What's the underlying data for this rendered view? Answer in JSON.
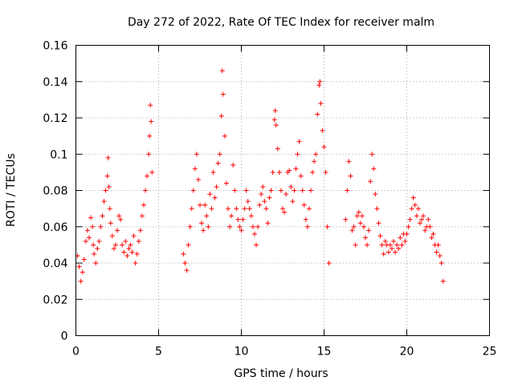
{
  "chart_data": {
    "type": "scatter",
    "title": "Day 272 of 2022, Rate Of TEC Index for receiver malm",
    "xlabel": "GPS time / hours",
    "ylabel": "ROTI / TECUs",
    "xlim": [
      0,
      25
    ],
    "ylim": [
      0,
      0.16
    ],
    "xticks": [
      0,
      5,
      10,
      15,
      20,
      25
    ],
    "xtick_labels": [
      "0",
      "5",
      "10",
      "15",
      "20",
      "25"
    ],
    "yticks": [
      0,
      0.02,
      0.04,
      0.06,
      0.08,
      0.1,
      0.12,
      0.14,
      0.16
    ],
    "ytick_labels": [
      "0",
      "0.02",
      "0.04",
      "0.06",
      "0.08",
      "0.1",
      "0.12",
      "0.14",
      "0.16"
    ],
    "grid": true,
    "marker": "+",
    "color": "#ff0000",
    "series": [
      {
        "x": [
          0.1,
          0.2,
          0.3,
          0.4,
          0.5,
          0.6,
          0.7,
          0.8,
          0.9,
          1.0,
          1.05,
          1.1,
          1.2,
          1.3,
          1.4,
          1.5,
          1.6,
          1.7,
          1.8,
          1.9,
          1.95,
          2.0,
          2.05,
          2.1,
          2.2,
          2.3,
          2.4,
          2.5,
          2.6,
          2.7,
          2.8,
          2.9,
          3.0,
          3.1,
          3.2,
          3.3,
          3.4,
          3.5,
          3.6,
          3.7,
          3.8,
          3.9,
          4.0,
          4.1,
          4.2,
          4.3,
          4.4,
          4.45,
          4.5,
          4.55,
          4.6,
          6.5,
          6.6,
          6.7,
          6.8,
          6.9,
          7.0,
          7.1,
          7.2,
          7.3,
          7.4,
          7.5,
          7.6,
          7.7,
          7.8,
          7.9,
          8.0,
          8.1,
          8.2,
          8.3,
          8.4,
          8.5,
          8.6,
          8.7,
          8.8,
          8.85,
          8.9,
          9.0,
          9.1,
          9.2,
          9.3,
          9.4,
          9.5,
          9.6,
          9.7,
          9.8,
          9.9,
          10.0,
          10.1,
          10.2,
          10.3,
          10.4,
          10.5,
          10.6,
          10.7,
          10.8,
          10.9,
          11.0,
          11.1,
          11.2,
          11.3,
          11.4,
          11.5,
          11.6,
          11.7,
          11.8,
          11.9,
          12.0,
          12.05,
          12.1,
          12.2,
          12.3,
          12.4,
          12.5,
          12.6,
          12.7,
          12.8,
          12.9,
          13.0,
          13.1,
          13.2,
          13.3,
          13.4,
          13.5,
          13.6,
          13.7,
          13.8,
          13.9,
          14.0,
          14.1,
          14.2,
          14.3,
          14.4,
          14.5,
          14.6,
          14.7,
          14.75,
          14.8,
          14.9,
          15.0,
          15.1,
          15.2,
          15.3,
          16.3,
          16.4,
          16.5,
          16.6,
          16.7,
          16.8,
          16.9,
          17.0,
          17.1,
          17.2,
          17.3,
          17.4,
          17.5,
          17.6,
          17.7,
          17.8,
          17.9,
          18.0,
          18.1,
          18.2,
          18.3,
          18.4,
          18.5,
          18.6,
          18.7,
          18.8,
          18.9,
          19.0,
          19.1,
          19.2,
          19.3,
          19.4,
          19.5,
          19.6,
          19.7,
          19.8,
          19.9,
          20.0,
          20.1,
          20.2,
          20.3,
          20.4,
          20.5,
          20.6,
          20.7,
          20.8,
          20.9,
          21.0,
          21.1,
          21.2,
          21.3,
          21.4,
          21.5,
          21.6,
          21.7,
          21.8,
          21.9,
          22.0,
          22.1,
          22.2
        ],
        "y": [
          0.044,
          0.038,
          0.03,
          0.035,
          0.042,
          0.052,
          0.058,
          0.054,
          0.065,
          0.06,
          0.05,
          0.045,
          0.04,
          0.048,
          0.052,
          0.06,
          0.066,
          0.074,
          0.08,
          0.088,
          0.098,
          0.082,
          0.07,
          0.062,
          0.055,
          0.048,
          0.05,
          0.058,
          0.066,
          0.064,
          0.05,
          0.046,
          0.052,
          0.044,
          0.048,
          0.05,
          0.046,
          0.055,
          0.04,
          0.045,
          0.052,
          0.058,
          0.066,
          0.072,
          0.08,
          0.088,
          0.1,
          0.11,
          0.127,
          0.118,
          0.09,
          0.045,
          0.04,
          0.036,
          0.05,
          0.06,
          0.07,
          0.08,
          0.092,
          0.1,
          0.086,
          0.072,
          0.062,
          0.058,
          0.072,
          0.066,
          0.06,
          0.078,
          0.07,
          0.09,
          0.076,
          0.082,
          0.095,
          0.1,
          0.121,
          0.146,
          0.133,
          0.11,
          0.084,
          0.07,
          0.06,
          0.066,
          0.094,
          0.08,
          0.07,
          0.064,
          0.06,
          0.058,
          0.064,
          0.07,
          0.08,
          0.074,
          0.07,
          0.066,
          0.06,
          0.056,
          0.05,
          0.06,
          0.072,
          0.078,
          0.082,
          0.074,
          0.07,
          0.062,
          0.076,
          0.08,
          0.09,
          0.119,
          0.124,
          0.116,
          0.103,
          0.09,
          0.08,
          0.07,
          0.068,
          0.078,
          0.09,
          0.091,
          0.082,
          0.074,
          0.08,
          0.092,
          0.1,
          0.107,
          0.088,
          0.08,
          0.072,
          0.064,
          0.06,
          0.07,
          0.08,
          0.09,
          0.096,
          0.1,
          0.122,
          0.138,
          0.14,
          0.128,
          0.113,
          0.104,
          0.09,
          0.06,
          0.04,
          0.064,
          0.08,
          0.096,
          0.088,
          0.058,
          0.06,
          0.05,
          0.066,
          0.068,
          0.062,
          0.066,
          0.06,
          0.054,
          0.05,
          0.058,
          0.085,
          0.1,
          0.092,
          0.078,
          0.07,
          0.062,
          0.055,
          0.05,
          0.045,
          0.052,
          0.05,
          0.046,
          0.05,
          0.048,
          0.052,
          0.046,
          0.05,
          0.048,
          0.054,
          0.05,
          0.056,
          0.052,
          0.056,
          0.06,
          0.064,
          0.07,
          0.076,
          0.072,
          0.066,
          0.07,
          0.062,
          0.064,
          0.066,
          0.058,
          0.06,
          0.064,
          0.06,
          0.054,
          0.056,
          0.05,
          0.046,
          0.05,
          0.044,
          0.04,
          0.03
        ]
      }
    ]
  }
}
